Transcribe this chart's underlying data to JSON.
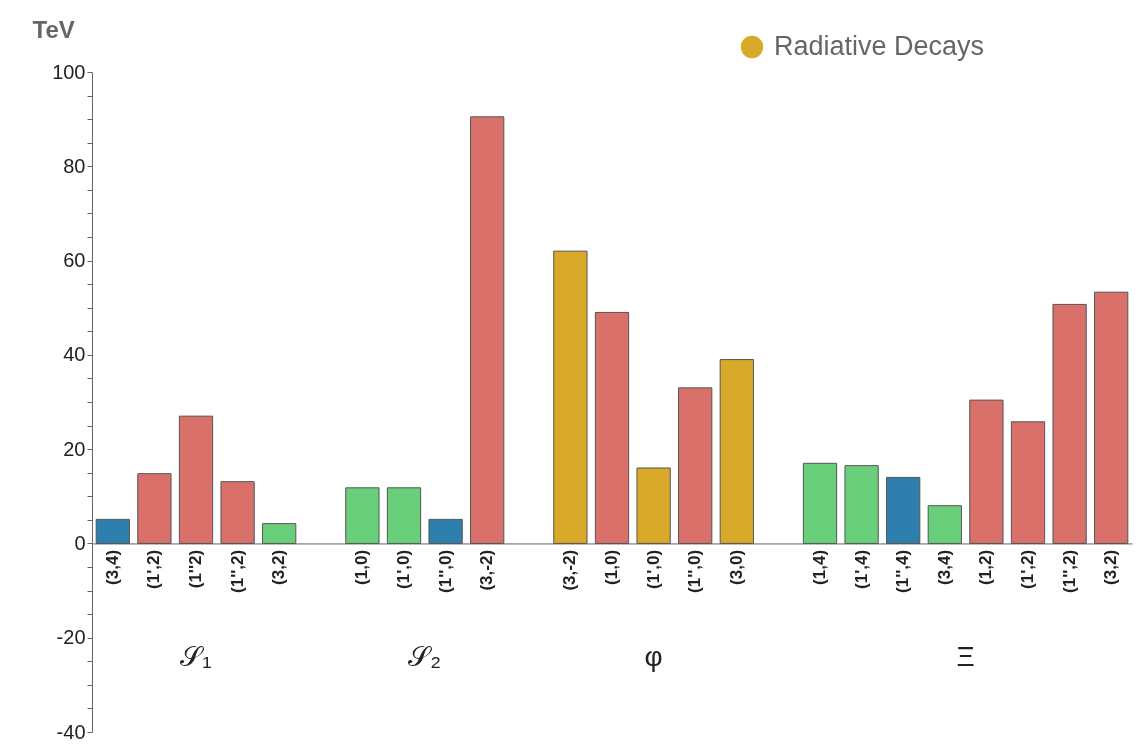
{
  "chart_data": {
    "type": "bar",
    "ylabel": "TeV",
    "categories": [
      "(3,4)",
      "(1',2)",
      "(1''2)",
      "(1'',2)",
      "(3,2)",
      null,
      "(1,0)",
      "(1',0)",
      "(1'',0)",
      "(3,-2)",
      null,
      "(3,-2)",
      "(1,0)",
      "(1',0)",
      "(1'',0)",
      "(3,0)",
      null,
      "(1,4)",
      "(1',4)",
      "(1'',4)",
      "(3,4)",
      "(1,2)",
      "(1',2)",
      "(1'',2)",
      "(3,2)"
    ],
    "series": [
      {
        "color": "#d9716a",
        "values": [
          null,
          14.8,
          27,
          13.1,
          null,
          null,
          null,
          null,
          null,
          90.5,
          null,
          null,
          49,
          null,
          33,
          null,
          null,
          null,
          null,
          null,
          null,
          30.4,
          25.8,
          50.7,
          53.3
        ]
      },
      {
        "color": "#6acf7a",
        "values": [
          null,
          null,
          null,
          null,
          4.2,
          null,
          11.8,
          11.8,
          null,
          null,
          null,
          null,
          null,
          null,
          null,
          null,
          null,
          17,
          16.5,
          null,
          8,
          null,
          null,
          null,
          null
        ]
      },
      {
        "color": "#2f7fae",
        "values": [
          5.1,
          null,
          null,
          null,
          null,
          null,
          null,
          null,
          5.1,
          null,
          null,
          null,
          null,
          null,
          null,
          null,
          null,
          null,
          null,
          14,
          null,
          null,
          null,
          null,
          null
        ]
      },
      {
        "name": "Radiative Decays",
        "color": "#d9a92a",
        "values": [
          null,
          null,
          null,
          null,
          null,
          null,
          null,
          null,
          null,
          null,
          null,
          62,
          null,
          16,
          null,
          39,
          null,
          null,
          null,
          null,
          null,
          null,
          null,
          null,
          null
        ]
      }
    ],
    "annotations": [
      "𝒮₁",
      "𝒮₂",
      "φ",
      "Ξ"
    ],
    "ylim": [
      -40,
      100
    ],
    "yticks": [
      -40,
      {
        "value": -35,
        "label": null
      },
      {
        "value": -30,
        "label": null
      },
      {
        "value": -25,
        "label": null
      },
      -20,
      {
        "value": -15,
        "label": null
      },
      {
        "value": -10,
        "label": null
      },
      {
        "value": -5,
        "label": null
      },
      0,
      {
        "value": 5,
        "label": null
      },
      {
        "value": 10,
        "label": null
      },
      {
        "value": 15,
        "label": null
      },
      20,
      {
        "value": 25,
        "label": null
      },
      {
        "value": 30,
        "label": null
      },
      {
        "value": 35,
        "label": null
      },
      40,
      {
        "value": 45,
        "label": null
      },
      {
        "value": 50,
        "label": null
      },
      {
        "value": 55,
        "label": null
      },
      60,
      {
        "value": 65,
        "label": null
      },
      {
        "value": 70,
        "label": null
      },
      {
        "value": 75,
        "label": null
      },
      80,
      {
        "value": 85,
        "label": null
      },
      {
        "value": 90,
        "label": null
      },
      {
        "value": 95,
        "label": null
      },
      100
    ],
    "grid": false,
    "legend": "top right"
  }
}
